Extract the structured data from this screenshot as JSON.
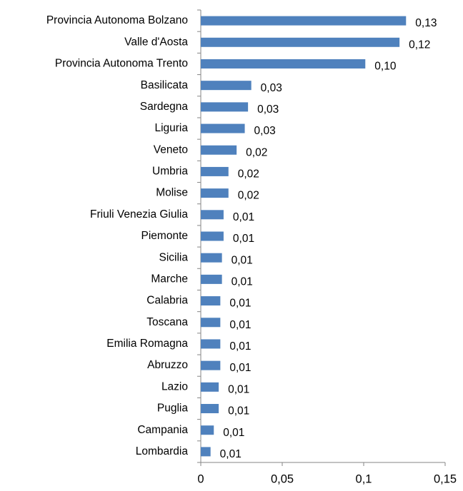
{
  "chart_data": {
    "type": "bar",
    "orientation": "horizontal",
    "categories": [
      "Provincia Autonoma Bolzano",
      "Valle d'Aosta",
      "Provincia Autonoma Trento",
      "Basilicata",
      "Sardegna",
      "Liguria",
      "Veneto",
      "Umbria",
      "Molise",
      "Friuli Venezia Giulia",
      "Piemonte",
      "Sicilia",
      "Marche",
      "Calabria",
      "Toscana",
      "Emilia Romagna",
      "Abruzzo",
      "Lazio",
      "Puglia",
      "Campania",
      "Lombardia"
    ],
    "values": [
      0.126,
      0.122,
      0.101,
      0.031,
      0.029,
      0.027,
      0.022,
      0.017,
      0.017,
      0.014,
      0.014,
      0.013,
      0.013,
      0.012,
      0.012,
      0.012,
      0.012,
      0.011,
      0.011,
      0.008,
      0.006
    ],
    "value_labels": [
      "0,13",
      "0,12",
      "0,10",
      "0,03",
      "0,03",
      "0,03",
      "0,02",
      "0,02",
      "0,02",
      "0,01",
      "0,01",
      "0,01",
      "0,01",
      "0,01",
      "0,01",
      "0,01",
      "0,01",
      "0,01",
      "0,01",
      "0,01",
      "0,01"
    ],
    "color": "#4f81bd",
    "xlim": [
      0,
      0.15
    ],
    "xticks": [
      0,
      {
        "value": 0.05,
        "label": "0,05"
      },
      {
        "value": 0.1,
        "label": "0,1"
      },
      {
        "value": 0.15,
        "label": "0,15"
      }
    ]
  }
}
